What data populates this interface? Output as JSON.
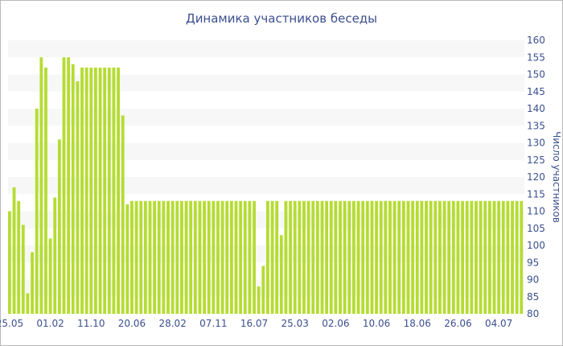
{
  "chart_data": {
    "type": "bar",
    "title": "Динамика участников беседы",
    "xlabel": "",
    "ylabel": "Число участников",
    "ylim": [
      80,
      160
    ],
    "yticks": [
      80,
      85,
      90,
      95,
      100,
      105,
      110,
      115,
      120,
      125,
      130,
      135,
      140,
      145,
      150,
      155,
      160
    ],
    "y_axis_position": "right",
    "grid": "alternating horizontal bands",
    "legend": "none",
    "bar_color": "#b5dc32",
    "band_color": "#f7f7f7",
    "text_color": "#3b4f8f",
    "xticks": [
      {
        "label": "25.05",
        "index": 0
      },
      {
        "label": "01.02",
        "index": 9
      },
      {
        "label": "11.10",
        "index": 18
      },
      {
        "label": "20.06",
        "index": 27
      },
      {
        "label": "28.02",
        "index": 36
      },
      {
        "label": "07.11",
        "index": 45
      },
      {
        "label": "16.07",
        "index": 54
      },
      {
        "label": "25.03",
        "index": 63
      },
      {
        "label": "02.06",
        "index": 72
      },
      {
        "label": "10.06",
        "index": 81
      },
      {
        "label": "18.06",
        "index": 90
      },
      {
        "label": "26.06",
        "index": 99
      },
      {
        "label": "04.07",
        "index": 108
      }
    ],
    "values": [
      110,
      117,
      113,
      106,
      86,
      98,
      140,
      155,
      152,
      102,
      114,
      131,
      155,
      155,
      153,
      148,
      152,
      152,
      152,
      152,
      152,
      152,
      152,
      152,
      152,
      138,
      112,
      113,
      113,
      113,
      113,
      113,
      113,
      113,
      113,
      113,
      113,
      113,
      113,
      113,
      113,
      113,
      113,
      113,
      113,
      113,
      113,
      113,
      113,
      113,
      113,
      113,
      113,
      113,
      113,
      88,
      94,
      113,
      113,
      113,
      103,
      113,
      113,
      113,
      113,
      113,
      113,
      113,
      113,
      113,
      113,
      113,
      113,
      113,
      113,
      113,
      113,
      113,
      113,
      113,
      113,
      113,
      113,
      113,
      113,
      113,
      113,
      113,
      113,
      113,
      113,
      113,
      113,
      113,
      113,
      113,
      113,
      113,
      113,
      113,
      113,
      113,
      113,
      113,
      113,
      113,
      113,
      113,
      113,
      113,
      113,
      113,
      113,
      113
    ]
  }
}
